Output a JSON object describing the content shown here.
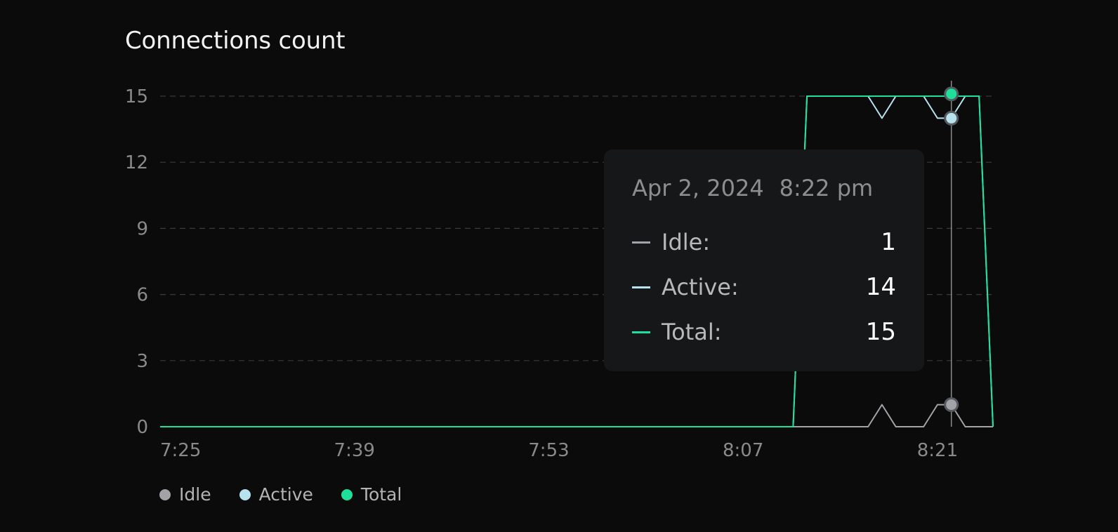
{
  "chart_data": {
    "type": "line",
    "title": "Connections count",
    "xlabel": "",
    "ylabel": "",
    "grid": true,
    "legend_position": "bottom-left",
    "x_ticks": [
      "7:25",
      "7:39",
      "7:53",
      "8:07",
      "8:21"
    ],
    "y_ticks": [
      0,
      3,
      6,
      9,
      12,
      15
    ],
    "ylim": [
      0,
      15.5
    ],
    "series": [
      {
        "name": "Idle",
        "color": "#a3a3a7",
        "points": [
          [
            0,
            0
          ],
          [
            49,
            0
          ],
          [
            50,
            0
          ],
          [
            51,
            0
          ],
          [
            52,
            1
          ],
          [
            53,
            0
          ],
          [
            54,
            0
          ],
          [
            55,
            0
          ],
          [
            56,
            1
          ],
          [
            57,
            1
          ],
          [
            58,
            0
          ],
          [
            59,
            0
          ],
          [
            60,
            0
          ]
        ]
      },
      {
        "name": "Active",
        "color": "#b8e2ee",
        "points": [
          [
            0,
            0
          ],
          [
            45.6,
            0
          ],
          [
            46.6,
            15
          ],
          [
            50,
            15
          ],
          [
            51,
            15
          ],
          [
            52,
            14
          ],
          [
            53,
            15
          ],
          [
            54,
            15
          ],
          [
            55,
            15
          ],
          [
            56,
            14
          ],
          [
            57,
            14
          ],
          [
            58,
            15
          ],
          [
            59,
            15
          ],
          [
            60,
            0
          ]
        ]
      },
      {
        "name": "Total",
        "color": "#1fe09a",
        "points": [
          [
            0,
            0
          ],
          [
            45.6,
            0
          ],
          [
            46.6,
            15
          ],
          [
            59,
            15
          ],
          [
            60,
            0
          ]
        ]
      }
    ],
    "hover": {
      "x": 57
    }
  },
  "tooltip": {
    "date": "Apr 2, 2024",
    "time": "8:22 pm",
    "rows": [
      {
        "label": "Idle:",
        "value": "1",
        "color": "#a3a3a7"
      },
      {
        "label": "Active:",
        "value": "14",
        "color": "#b8e2ee"
      },
      {
        "label": "Total:",
        "value": "15",
        "color": "#1fe09a"
      }
    ]
  },
  "legend": [
    {
      "label": "Idle",
      "color": "#a3a3a7"
    },
    {
      "label": "Active",
      "color": "#b8e2ee"
    },
    {
      "label": "Total",
      "color": "#1fe09a"
    }
  ]
}
